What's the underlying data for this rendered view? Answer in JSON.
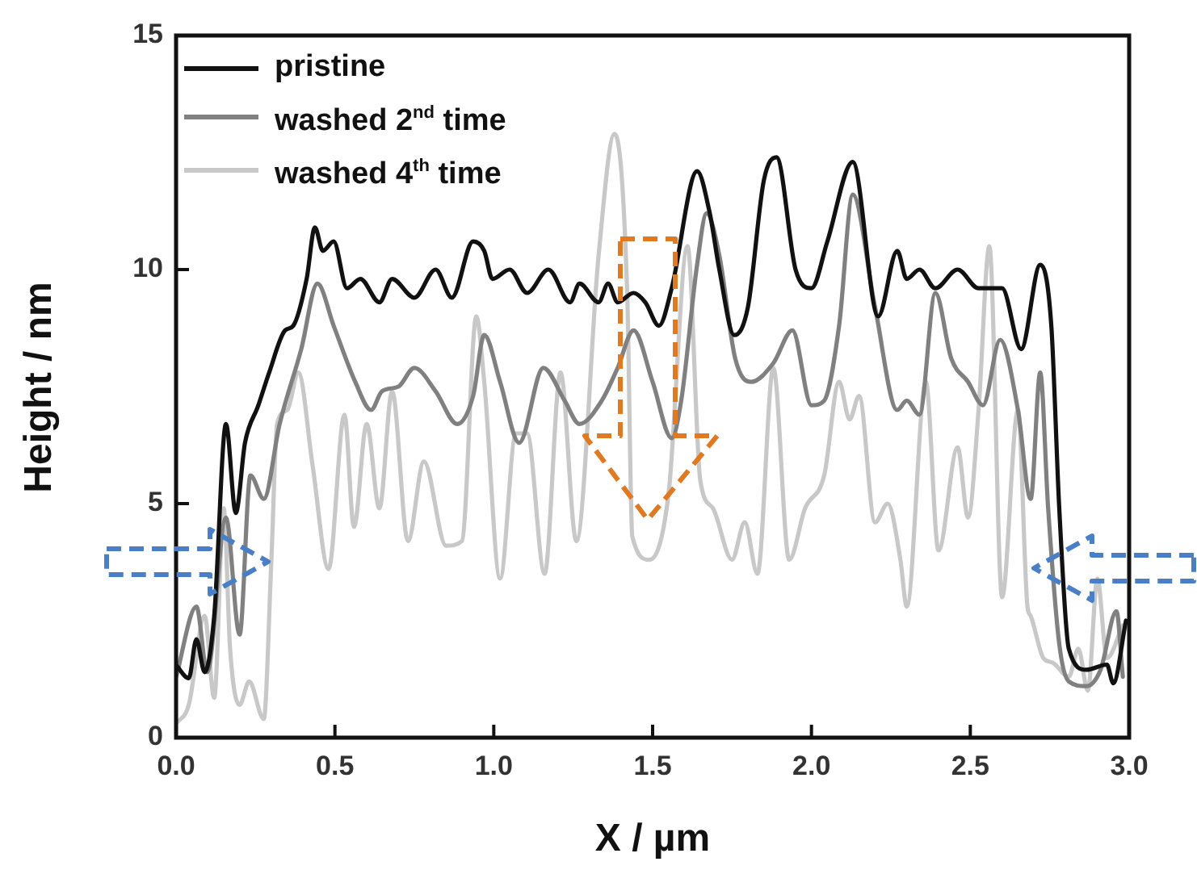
{
  "chart_data": {
    "type": "line",
    "xlabel": "X / µm",
    "ylabel": "Height / nm",
    "xlim": [
      0,
      3
    ],
    "ylim": [
      0,
      15
    ],
    "xticks": [
      {
        "value": 0,
        "label": "0.0"
      },
      {
        "value": 0.5,
        "label": "0.5"
      },
      {
        "value": 1,
        "label": "1.0"
      },
      {
        "value": 1.5,
        "label": "1.5"
      },
      {
        "value": 2,
        "label": "2.0"
      },
      {
        "value": 2.5,
        "label": "2.5"
      },
      {
        "value": 3,
        "label": "3.0"
      }
    ],
    "yticks": [
      0,
      5,
      10,
      15
    ],
    "legend": "top left",
    "grid": false,
    "marker": "none",
    "line_style": "solid",
    "series": [
      {
        "name": "pristine",
        "color": "#111111",
        "x": [
          0,
          0.04,
          0.064,
          0.09,
          0.12,
          0.157,
          0.188,
          0.217,
          0.259,
          0.293,
          0.343,
          0.369,
          0.411,
          0.437,
          0.462,
          0.496,
          0.538,
          0.58,
          0.64,
          0.68,
          0.75,
          0.817,
          0.868,
          0.935,
          0.97,
          0.996,
          1.05,
          1.105,
          1.172,
          1.24,
          1.27,
          1.33,
          1.36,
          1.39,
          1.44,
          1.477,
          1.52,
          1.56,
          1.64,
          1.68,
          1.71,
          1.757,
          1.8,
          1.85,
          1.89,
          1.95,
          2.0,
          2.05,
          2.13,
          2.21,
          2.27,
          2.3,
          2.34,
          2.39,
          2.46,
          2.526,
          2.6,
          2.66,
          2.72,
          2.755,
          2.78,
          2.81,
          2.865,
          2.93,
          2.95,
          2.99
        ],
        "values": [
          1.55,
          1.27,
          2.1,
          1.4,
          2.6,
          6.7,
          4.8,
          6.3,
          7.1,
          7.8,
          8.7,
          8.8,
          9.8,
          10.9,
          10.4,
          10.6,
          9.6,
          9.8,
          9.3,
          9.8,
          9.4,
          10.0,
          9.4,
          10.6,
          10.4,
          9.8,
          10.0,
          9.5,
          10.0,
          9.3,
          9.7,
          9.3,
          9.7,
          9.3,
          9.5,
          9.3,
          8.8,
          9.6,
          12.1,
          11.2,
          10.0,
          8.6,
          9.2,
          11.9,
          12.4,
          10.0,
          9.6,
          10.6,
          12.3,
          9.0,
          10.4,
          9.8,
          10.0,
          9.6,
          10.0,
          9.6,
          9.6,
          8.3,
          10.1,
          8.8,
          4.9,
          1.9,
          1.45,
          1.56,
          1.16,
          2.5
        ]
      },
      {
        "name": "washed 2$^{nd}$ time",
        "color": "#808080",
        "x": [
          0,
          0.064,
          0.098,
          0.157,
          0.2,
          0.234,
          0.276,
          0.326,
          0.394,
          0.445,
          0.496,
          0.564,
          0.614,
          0.648,
          0.7,
          0.75,
          0.817,
          0.885,
          0.935,
          0.97,
          1.02,
          1.08,
          1.156,
          1.223,
          1.27,
          1.34,
          1.39,
          1.44,
          1.5,
          1.56,
          1.59,
          1.64,
          1.67,
          1.71,
          1.76,
          1.81,
          1.88,
          1.94,
          2.0,
          2.04,
          2.087,
          2.13,
          2.2,
          2.27,
          2.3,
          2.34,
          2.39,
          2.44,
          2.493,
          2.54,
          2.594,
          2.65,
          2.69,
          2.72,
          2.745,
          2.78,
          2.81,
          2.865,
          2.91,
          2.96,
          2.98
        ],
        "values": [
          1.3,
          2.8,
          1.4,
          4.7,
          2.2,
          5.6,
          5.1,
          6.7,
          8.3,
          9.7,
          8.8,
          7.6,
          7.0,
          7.4,
          7.5,
          7.9,
          7.4,
          6.7,
          7.3,
          8.6,
          7.6,
          6.3,
          7.9,
          7.2,
          6.7,
          7.2,
          7.9,
          8.7,
          7.6,
          6.4,
          7.2,
          10.1,
          11.2,
          10.3,
          8.1,
          7.6,
          8.0,
          8.7,
          7.1,
          7.2,
          8.8,
          11.6,
          9.2,
          7.0,
          7.2,
          6.9,
          9.5,
          8.1,
          7.6,
          7.1,
          8.5,
          7.0,
          5.1,
          7.8,
          4.9,
          2.0,
          1.2,
          1.1,
          1.45,
          2.7,
          1.3
        ]
      },
      {
        "name": "washed 4$^{th}$ time",
        "color": "#c8c8c8",
        "x": [
          0,
          0.04,
          0.09,
          0.12,
          0.15,
          0.17,
          0.2,
          0.23,
          0.276,
          0.3,
          0.318,
          0.35,
          0.385,
          0.43,
          0.48,
          0.53,
          0.56,
          0.6,
          0.64,
          0.68,
          0.73,
          0.78,
          0.85,
          0.9,
          0.945,
          0.97,
          1.02,
          1.07,
          1.105,
          1.16,
          1.21,
          1.26,
          1.33,
          1.38,
          1.42,
          1.436,
          1.49,
          1.55,
          1.61,
          1.65,
          1.69,
          1.75,
          1.79,
          1.83,
          1.88,
          1.93,
          1.98,
          2.04,
          2.087,
          2.12,
          2.15,
          2.2,
          2.24,
          2.28,
          2.3,
          2.36,
          2.4,
          2.46,
          2.493,
          2.526,
          2.56,
          2.6,
          2.65,
          2.68,
          2.69,
          2.73,
          2.76,
          2.81,
          2.84,
          2.87,
          2.9,
          2.93,
          2.98
        ],
        "values": [
          0.3,
          0.7,
          2.6,
          0.85,
          4.9,
          1.9,
          0.7,
          1.2,
          0.4,
          3.8,
          6.7,
          7.0,
          7.8,
          5.8,
          3.6,
          6.9,
          4.5,
          6.7,
          4.9,
          7.4,
          4.2,
          5.9,
          4.1,
          4.2,
          9.0,
          7.6,
          3.4,
          6.5,
          6.5,
          3.5,
          7.8,
          4.2,
          10.3,
          12.9,
          9.5,
          4.3,
          3.8,
          5.2,
          10.5,
          5.5,
          4.9,
          3.8,
          4.6,
          3.5,
          7.9,
          3.8,
          4.9,
          5.6,
          7.6,
          6.8,
          7.3,
          4.6,
          5.0,
          3.8,
          2.8,
          7.6,
          4.0,
          6.2,
          4.7,
          7.0,
          10.5,
          3.0,
          7.0,
          2.8,
          2.6,
          1.7,
          1.6,
          1.3,
          1.9,
          1.0,
          3.4,
          1.7,
          2.4
        ]
      }
    ]
  }
}
